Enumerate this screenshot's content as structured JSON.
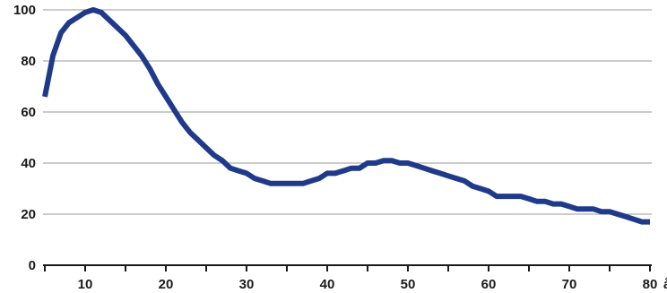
{
  "chart_data": {
    "type": "line",
    "x_unit": "år",
    "xlim": [
      5,
      80
    ],
    "ylim": [
      0,
      100
    ],
    "x_ticks": [
      10,
      20,
      30,
      40,
      50,
      60,
      70,
      80
    ],
    "y_ticks": [
      0,
      20,
      40,
      60,
      80,
      100
    ],
    "grid": "horizontal",
    "line_color": "#1f3a8a",
    "series": [
      {
        "x": [
          5,
          6,
          7,
          8,
          9,
          10,
          11,
          12,
          13,
          14,
          15,
          16,
          17,
          18,
          19,
          20,
          21,
          22,
          23,
          24,
          25,
          26,
          27,
          28,
          29,
          30,
          31,
          32,
          33,
          34,
          35,
          36,
          37,
          38,
          39,
          40,
          41,
          42,
          43,
          44,
          45,
          46,
          47,
          48,
          49,
          50,
          51,
          52,
          53,
          54,
          55,
          56,
          57,
          58,
          59,
          60,
          61,
          62,
          63,
          64,
          65,
          66,
          67,
          68,
          69,
          70,
          71,
          72,
          73,
          74,
          75,
          76,
          77,
          78,
          79,
          80
        ],
        "values": [
          66,
          82,
          91,
          95,
          97,
          99,
          100,
          99,
          96,
          93,
          90,
          86,
          82,
          77,
          71,
          66,
          61,
          56,
          52,
          49,
          46,
          43,
          41,
          38,
          37,
          36,
          34,
          33,
          32,
          32,
          32,
          32,
          32,
          33,
          34,
          36,
          36,
          37,
          38,
          38,
          40,
          40,
          41,
          41,
          40,
          40,
          39,
          38,
          37,
          36,
          35,
          34,
          33,
          31,
          30,
          29,
          27,
          27,
          27,
          27,
          26,
          25,
          25,
          24,
          24,
          23,
          22,
          22,
          22,
          21,
          21,
          20,
          19,
          18,
          17,
          17
        ]
      }
    ]
  }
}
